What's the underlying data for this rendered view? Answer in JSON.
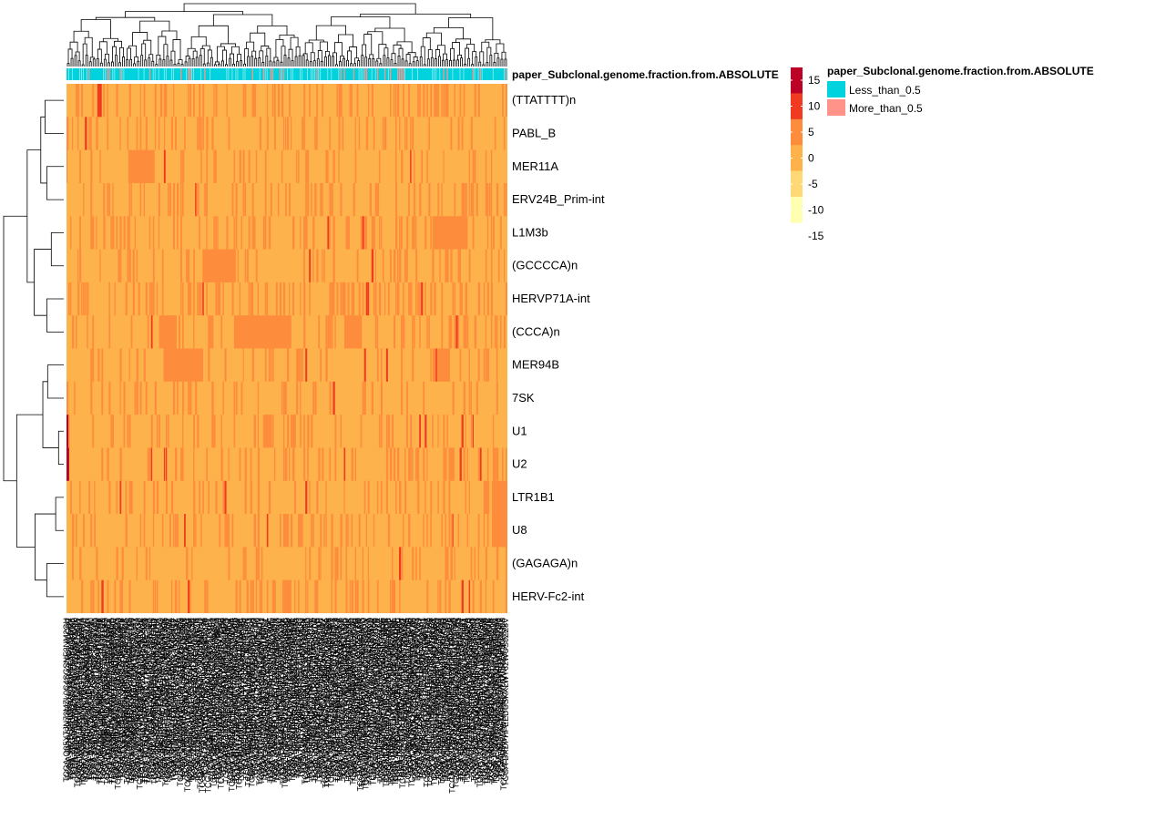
{
  "chart_data": {
    "type": "heatmap",
    "annotation": {
      "title": "paper_Subclonal.genome.fraction.from.ABSOLUTE",
      "levels": [
        {
          "label": "Less_than_0.5",
          "color": "#00D3DE"
        },
        {
          "label": "More_than_0.5",
          "color": "#FF9289"
        }
      ]
    },
    "rows": [
      "(TTATTTT)n",
      "PABL_B",
      "MER11A",
      "ERV24B_Prim-int",
      "L1M3b",
      "(GCCCCA)n",
      "HERVP71A-int",
      "(CCCA)n",
      "MER94B",
      "7SK",
      "U1",
      "U2",
      "LTR1B1",
      "U8",
      "(GAGAGA)n",
      "HERV-Fc2-int"
    ],
    "color_scale": {
      "breaks": [
        15,
        10,
        5,
        0,
        -5,
        -10,
        -15
      ],
      "labels": [
        "15",
        "10",
        "5",
        "0",
        "-5",
        "-10",
        "-15"
      ],
      "colors": [
        "#BD0026",
        "#F03B20",
        "#FD8D3C",
        "#FEB24C",
        "#FED976",
        "#FFFFB2"
      ]
    },
    "baseline_value": -2,
    "hot_patches": [
      {
        "row": 0,
        "col_from": 0.07,
        "col_to": 0.08,
        "value": 8
      },
      {
        "row": 2,
        "col_from": 0.14,
        "col_to": 0.2,
        "value": 2
      },
      {
        "row": 4,
        "col_from": 0.83,
        "col_to": 0.91,
        "value": 2
      },
      {
        "row": 5,
        "col_from": 0.31,
        "col_to": 0.38,
        "value": 2
      },
      {
        "row": 7,
        "col_from": 0.21,
        "col_to": 0.25,
        "value": 2
      },
      {
        "row": 7,
        "col_from": 0.38,
        "col_to": 0.51,
        "value": 2
      },
      {
        "row": 7,
        "col_from": 0.63,
        "col_to": 0.67,
        "value": 2
      },
      {
        "row": 8,
        "col_from": 0.22,
        "col_to": 0.31,
        "value": 2
      },
      {
        "row": 8,
        "col_from": 0.83,
        "col_to": 0.87,
        "value": 2
      },
      {
        "row": 10,
        "col_from": 0.0,
        "col_to": 0.006,
        "value": 12
      },
      {
        "row": 11,
        "col_from": 0.0,
        "col_to": 0.006,
        "value": 12
      },
      {
        "row": 12,
        "col_from": 0.965,
        "col_to": 1.0,
        "value": 4
      },
      {
        "row": 13,
        "col_from": 0.965,
        "col_to": 1.0,
        "value": 4
      },
      {
        "row": 15,
        "col_from": 0.49,
        "col_to": 0.51,
        "value": 2
      }
    ],
    "n_columns": 240
  }
}
